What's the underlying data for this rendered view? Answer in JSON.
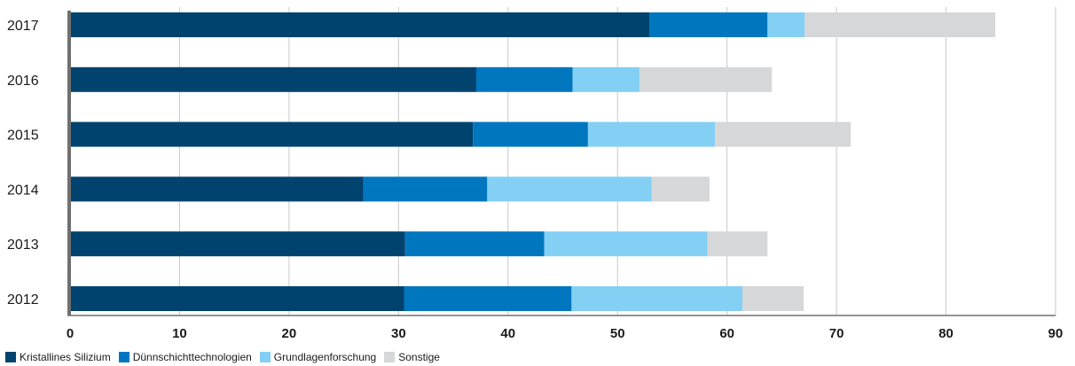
{
  "chart_data": {
    "type": "bar",
    "orientation": "horizontal",
    "stacked": true,
    "categories": [
      "2017",
      "2016",
      "2015",
      "2014",
      "2013",
      "2012"
    ],
    "series": [
      {
        "name": "Kristallines Silizium",
        "color": "#00436e",
        "values": [
          52.9,
          37.1,
          36.8,
          26.8,
          30.6,
          30.5
        ]
      },
      {
        "name": "Dünnschichttechnologien",
        "color": "#0076bf",
        "values": [
          10.8,
          8.8,
          10.5,
          11.3,
          12.7,
          15.3
        ]
      },
      {
        "name": "Grundlagenforschung",
        "color": "#84cff4",
        "values": [
          3.4,
          6.1,
          11.6,
          15.0,
          14.9,
          15.6
        ]
      },
      {
        "name": "Sonstige",
        "color": "#d6d7d9",
        "values": [
          17.4,
          12.1,
          12.4,
          5.3,
          5.5,
          5.6
        ]
      }
    ],
    "xlim": [
      0,
      90
    ],
    "xticks": [
      "0",
      "10",
      "20",
      "30",
      "40",
      "50",
      "60",
      "70",
      "80",
      "90"
    ],
    "grid": "vertical",
    "legend_position": "bottom-left",
    "title": "",
    "xlabel": "",
    "ylabel": ""
  }
}
